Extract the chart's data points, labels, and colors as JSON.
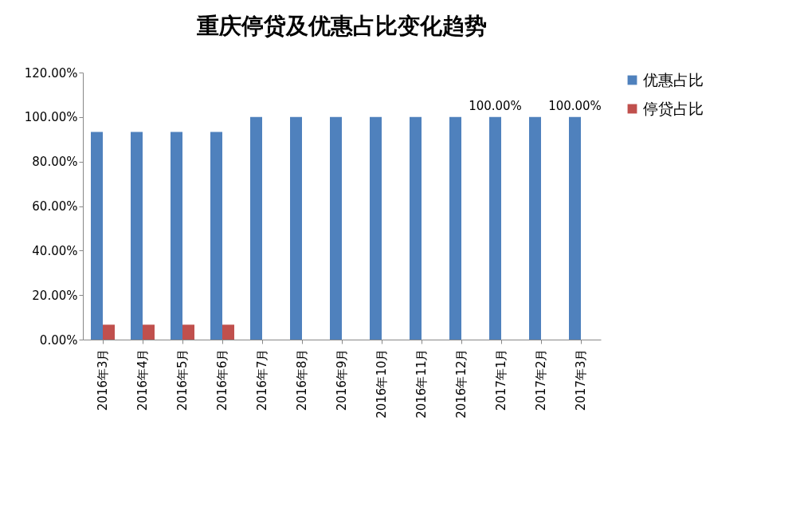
{
  "chart_data": {
    "type": "bar",
    "title": "重庆停贷及优惠占比变化趋势",
    "categories": [
      "2016年3月",
      "2016年4月",
      "2016年5月",
      "2016年6月",
      "2016年7月",
      "2016年8月",
      "2016年9月",
      "2016年10月",
      "2016年11月",
      "2016年12月",
      "2017年1月",
      "2017年2月",
      "2017年3月"
    ],
    "series": [
      {
        "name": "优惠占比",
        "color": "#4f81bd",
        "values": [
          93.3,
          93.3,
          93.3,
          93.3,
          100,
          100,
          100,
          100,
          100,
          100,
          100,
          100,
          100
        ],
        "value_labels": [
          null,
          null,
          null,
          null,
          null,
          null,
          null,
          null,
          null,
          null,
          "100.00%",
          null,
          "100.00%"
        ]
      },
      {
        "name": "停贷占比",
        "color": "#c0504d",
        "values": [
          6.7,
          6.7,
          6.7,
          6.7,
          0,
          0,
          0,
          0,
          0,
          0,
          0,
          0,
          0
        ]
      }
    ],
    "ylim": [
      0,
      120
    ],
    "yticks": [
      {
        "value": 0,
        "label": "0.00%"
      },
      {
        "value": 20,
        "label": "20.00%"
      },
      {
        "value": 40,
        "label": "40.00%"
      },
      {
        "value": 60,
        "label": "60.00%"
      },
      {
        "value": 80,
        "label": "80.00%"
      },
      {
        "value": 100,
        "label": "100.00%"
      },
      {
        "value": 120,
        "label": "120.00%"
      }
    ],
    "grid": false,
    "legend": "right"
  }
}
